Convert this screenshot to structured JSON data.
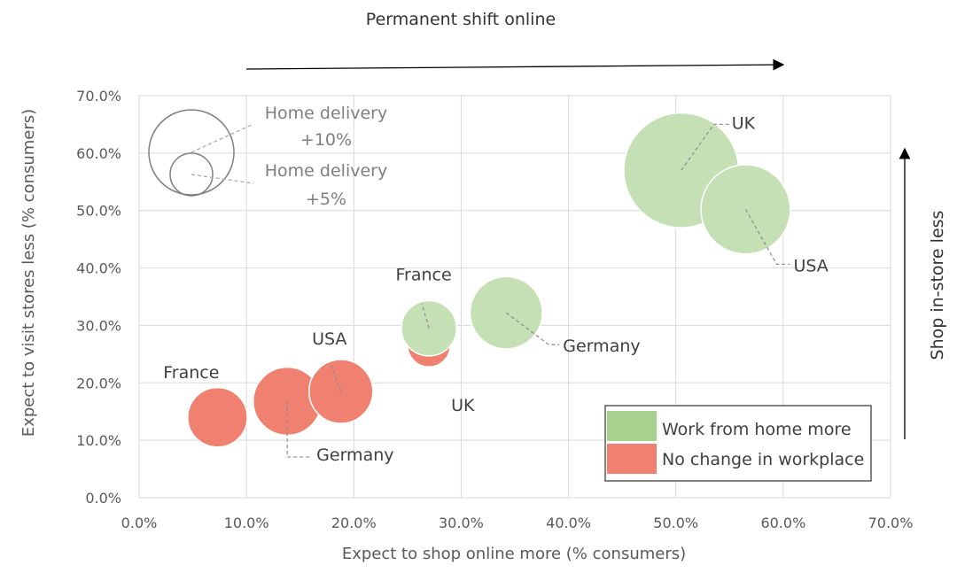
{
  "chart_data": {
    "type": "bubble",
    "xlabel": "Expect to shop online more (% consumers)",
    "ylabel": "Expect to visit stores less (% consumers)",
    "xlim": [
      0,
      70
    ],
    "ylim": [
      0,
      70
    ],
    "x_ticks": [
      "0.0%",
      "10.0%",
      "20.0%",
      "30.0%",
      "40.0%",
      "50.0%",
      "60.0%",
      "70.0%"
    ],
    "y_ticks": [
      "0.0%",
      "10.0%",
      "20.0%",
      "30.0%",
      "40.0%",
      "50.0%",
      "60.0%",
      "70.0%"
    ],
    "grid": true,
    "legend_position": "bottom-right",
    "annotations": {
      "top_arrow": "Permanent shift online",
      "right_arrow": "Shop in-store less"
    },
    "size_legend": [
      {
        "label_line1": "Home delivery",
        "label_line2": "+10%",
        "size": 10
      },
      {
        "label_line1": "Home delivery",
        "label_line2": "+5%",
        "size": 5
      }
    ],
    "series": [
      {
        "name": "No change in workplace",
        "color": "#f08070",
        "points": [
          {
            "label": "UK",
            "x": 27.0,
            "y": 26.5,
            "size": 5.0
          },
          {
            "label": "France",
            "x": 7.3,
            "y": 14.0,
            "size": 7.0
          },
          {
            "label": "Germany",
            "x": 13.8,
            "y": 16.8,
            "size": 8.0
          },
          {
            "label": "USA",
            "x": 18.8,
            "y": 18.5,
            "size": 7.5
          }
        ]
      },
      {
        "name": "Work from home more",
        "color": "#c5e0b4",
        "points": [
          {
            "label": "France",
            "x": 27.0,
            "y": 29.5,
            "size": 6.5
          },
          {
            "label": "Germany",
            "x": 34.2,
            "y": 32.2,
            "size": 8.5
          },
          {
            "label": "UK",
            "x": 50.5,
            "y": 57.0,
            "size": 13.5
          },
          {
            "label": "USA",
            "x": 56.5,
            "y": 50.2,
            "size": 10.5
          }
        ]
      }
    ]
  }
}
